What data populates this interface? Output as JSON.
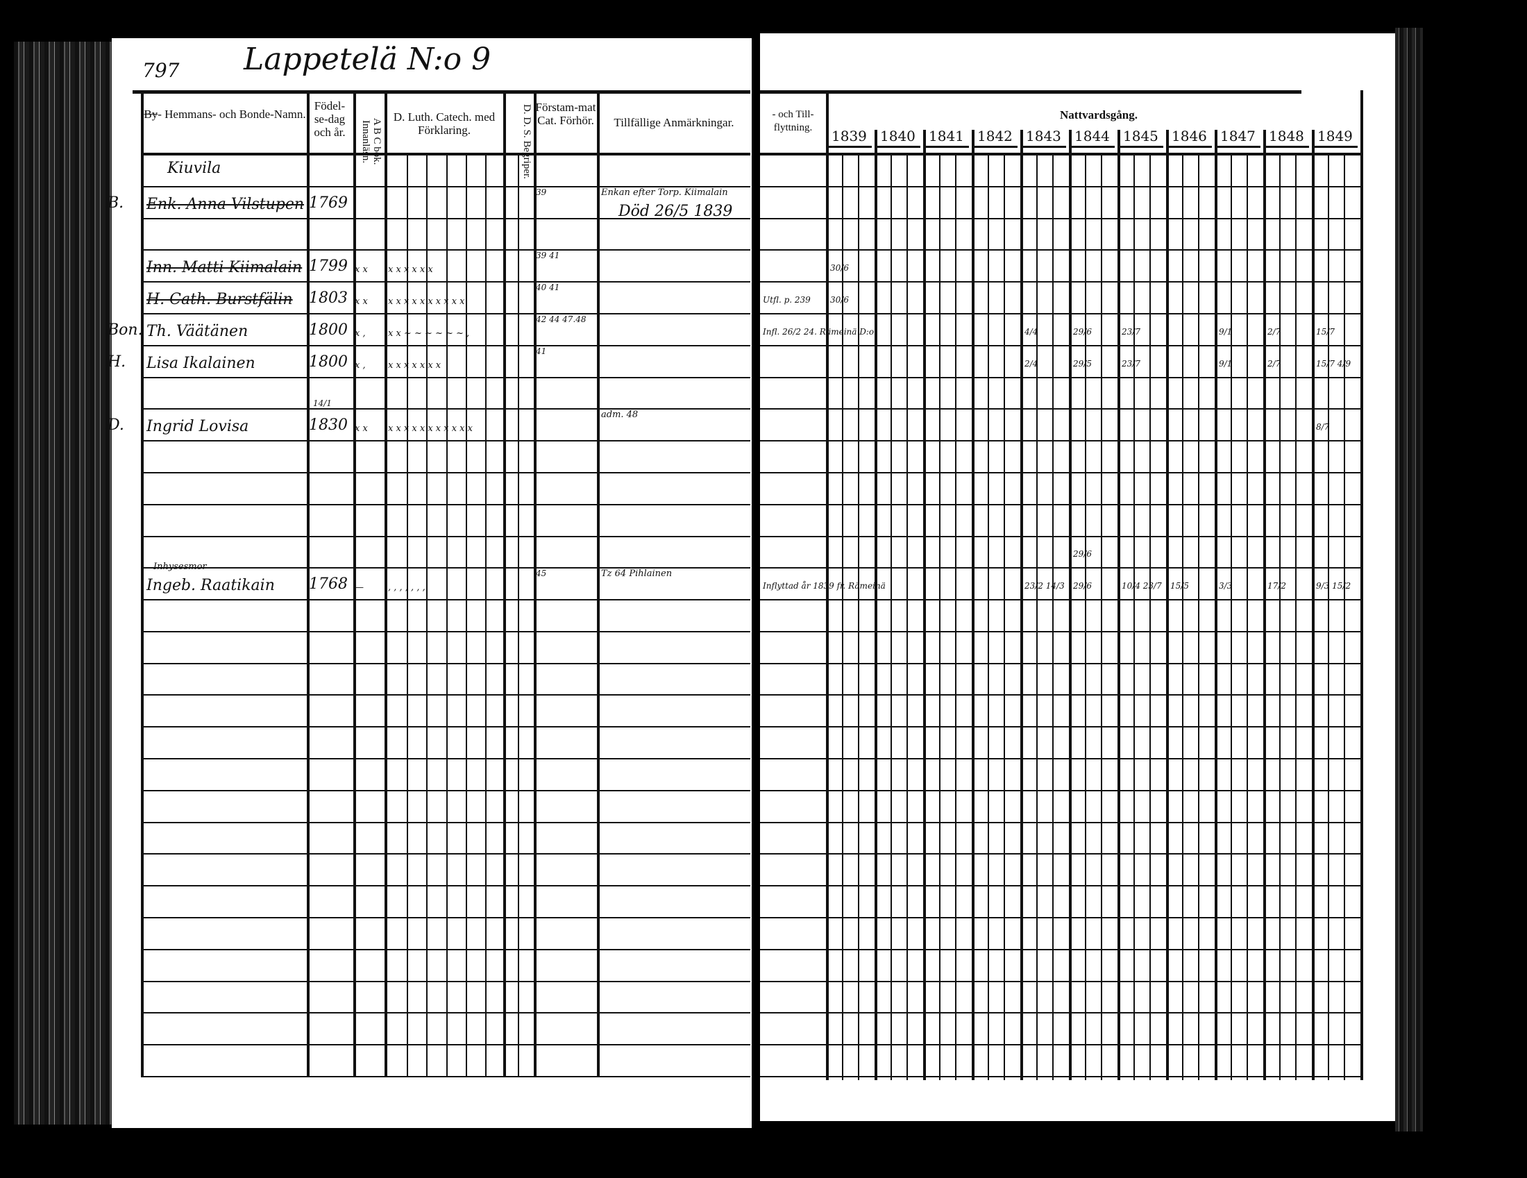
{
  "left_page": {
    "page_number": "797",
    "title": "Lappetelä N:o 9",
    "headers": {
      "name_col_struck": "By",
      "name_col": "- Hemmans- och Bonde-Namn.",
      "birth_col": "Födel-se-dag och år.",
      "abc_col": "A B C bok. Innanläsn.",
      "catech_col": "D. Luth. Catech. med Förklaring.",
      "dds_col": "D. D. S. Begriper.",
      "missed_col": "Förstam-mat Cat. Förhör.",
      "remarks_col": "Tillfällige Anmärkningar."
    },
    "section_label": "Kiuvila",
    "entries": [
      {
        "row": 1,
        "prefix": "B.",
        "name": "Enk. Anna Vilstupen",
        "struck": true,
        "birth": "1769",
        "abc": "",
        "catech": "",
        "missed": "39",
        "remarks": "Enkan efter Torp. Kiimalain",
        "remarks2": "Död 26/5 1839"
      },
      {
        "row": 3,
        "prefix": "",
        "name": "Inn. Matti Kiimalain",
        "struck": true,
        "birth": "1799",
        "abc": "x x",
        "catech": "x  x  x  x  x  x",
        "missed": "39 41",
        "remarks": "",
        "remarks2": ""
      },
      {
        "row": 4,
        "prefix": "",
        "name": "H. Cath. Burstfälin",
        "struck": true,
        "birth": "1803",
        "abc": "x x",
        "catech": "x x x x x x x x x x",
        "missed": "40 41",
        "remarks": "",
        "remarks2": ""
      },
      {
        "row": 5,
        "prefix": "Bon.",
        "name": "Th. Väätänen",
        "struck": false,
        "birth": "1800",
        "abc": "x ,",
        "catech": "x x ~ ~ ~ ~ ~ ~ ,",
        "missed": "42 44 47.48",
        "remarks": "",
        "remarks2": ""
      },
      {
        "row": 6,
        "prefix": "H.",
        "name": "Lisa Ikalainen",
        "struck": false,
        "birth": "1800",
        "abc": "x ,",
        "catech": "x x x x  x  x  x",
        "missed": "41",
        "remarks": "",
        "remarks2": ""
      },
      {
        "row": 8,
        "prefix": "D.",
        "name": "Ingrid Lovisa",
        "struck": false,
        "birth_day": "14/1",
        "birth": "1830",
        "abc": "x x",
        "catech": "x x x x x x x x x x x",
        "missed": "",
        "remarks": "adm. 48",
        "remarks2": ""
      },
      {
        "row": 13,
        "prefix": "",
        "name_line1": "Inhysesmor",
        "name": "Ingeb. Raatikain",
        "struck": false,
        "birth": "1768",
        "abc": "—",
        "catech": ",  ,  ,  ,  , , ,",
        "missed": "45",
        "remarks": "Tz 64   Pihlainen",
        "remarks2": ""
      }
    ]
  },
  "right_page": {
    "headers": {
      "moving_col": "- och Till- flyttning.",
      "communion_col": "Nattvardsgång."
    },
    "years": [
      "1839",
      "1840",
      "1841",
      "1842",
      "1843",
      "1844",
      "1845",
      "1846",
      "1847",
      "1848",
      "1849"
    ],
    "moving_notes": [
      {
        "row": 4,
        "text": "Utfl. p. 239"
      },
      {
        "row": 5,
        "text": "Infl. 26/2 24. Rämeinä D:o"
      },
      {
        "row": 13,
        "text": "Inflyttad år 1839 fr. Rämeinä"
      }
    ],
    "communion": [
      {
        "row": 3,
        "year": "1839",
        "text": "30/6"
      },
      {
        "row": 4,
        "year": "1839",
        "text": "30/6"
      },
      {
        "row": 5,
        "year": "1843",
        "text": "4/4"
      },
      {
        "row": 5,
        "year": "1844",
        "text": "29/6"
      },
      {
        "row": 5,
        "year": "1845",
        "text": "23/7"
      },
      {
        "row": 5,
        "year": "1847",
        "text": "9/1"
      },
      {
        "row": 5,
        "year": "1848",
        "text": "2/7"
      },
      {
        "row": 5,
        "year": "1849",
        "text": "15/7"
      },
      {
        "row": 6,
        "year": "1843",
        "text": "2/4"
      },
      {
        "row": 6,
        "year": "1844",
        "text": "29/5"
      },
      {
        "row": 6,
        "year": "1845",
        "text": "23/7"
      },
      {
        "row": 6,
        "year": "1847",
        "text": "9/1"
      },
      {
        "row": 6,
        "year": "1848",
        "text": "2/7"
      },
      {
        "row": 6,
        "year": "1849",
        "text": "15/7 4/9"
      },
      {
        "row": 8,
        "year": "1849",
        "text": "8/7"
      },
      {
        "row": 12,
        "year": "1844",
        "text": "29/6"
      },
      {
        "row": 13,
        "year": "1843",
        "text": "23/2 14/3"
      },
      {
        "row": 13,
        "year": "1844",
        "text": "29/6"
      },
      {
        "row": 13,
        "year": "1845",
        "text": "10/4 23/7"
      },
      {
        "row": 13,
        "year": "1846",
        "text": "15/5"
      },
      {
        "row": 13,
        "year": "1847",
        "text": "3/3"
      },
      {
        "row": 13,
        "year": "1848",
        "text": "17/2"
      },
      {
        "row": 13,
        "year": "1849",
        "text": "9/3 15/2"
      }
    ]
  }
}
